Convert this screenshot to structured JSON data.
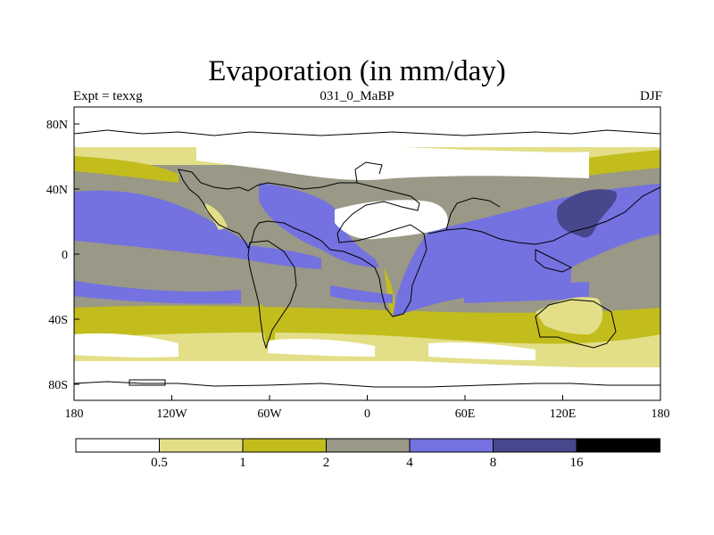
{
  "title": "Evaporation (in mm/day)",
  "subtitle": {
    "left": "Expt = texxg",
    "center": "031_0_MaBP",
    "right": "DJF"
  },
  "map": {
    "lon_ticks": [
      "180",
      "120W",
      "60W",
      "0",
      "60E",
      "120E",
      "180"
    ],
    "lat_ticks": [
      "80N",
      "40N",
      "0",
      "40S",
      "80S"
    ]
  },
  "colorbar": {
    "levels": [
      "0.5",
      "1",
      "2",
      "4",
      "8",
      "16"
    ],
    "colors": [
      "#ffffff",
      "#e2df88",
      "#c2bd1c",
      "#9a9886",
      "#7472e0",
      "#47478d",
      "#000000"
    ]
  }
}
